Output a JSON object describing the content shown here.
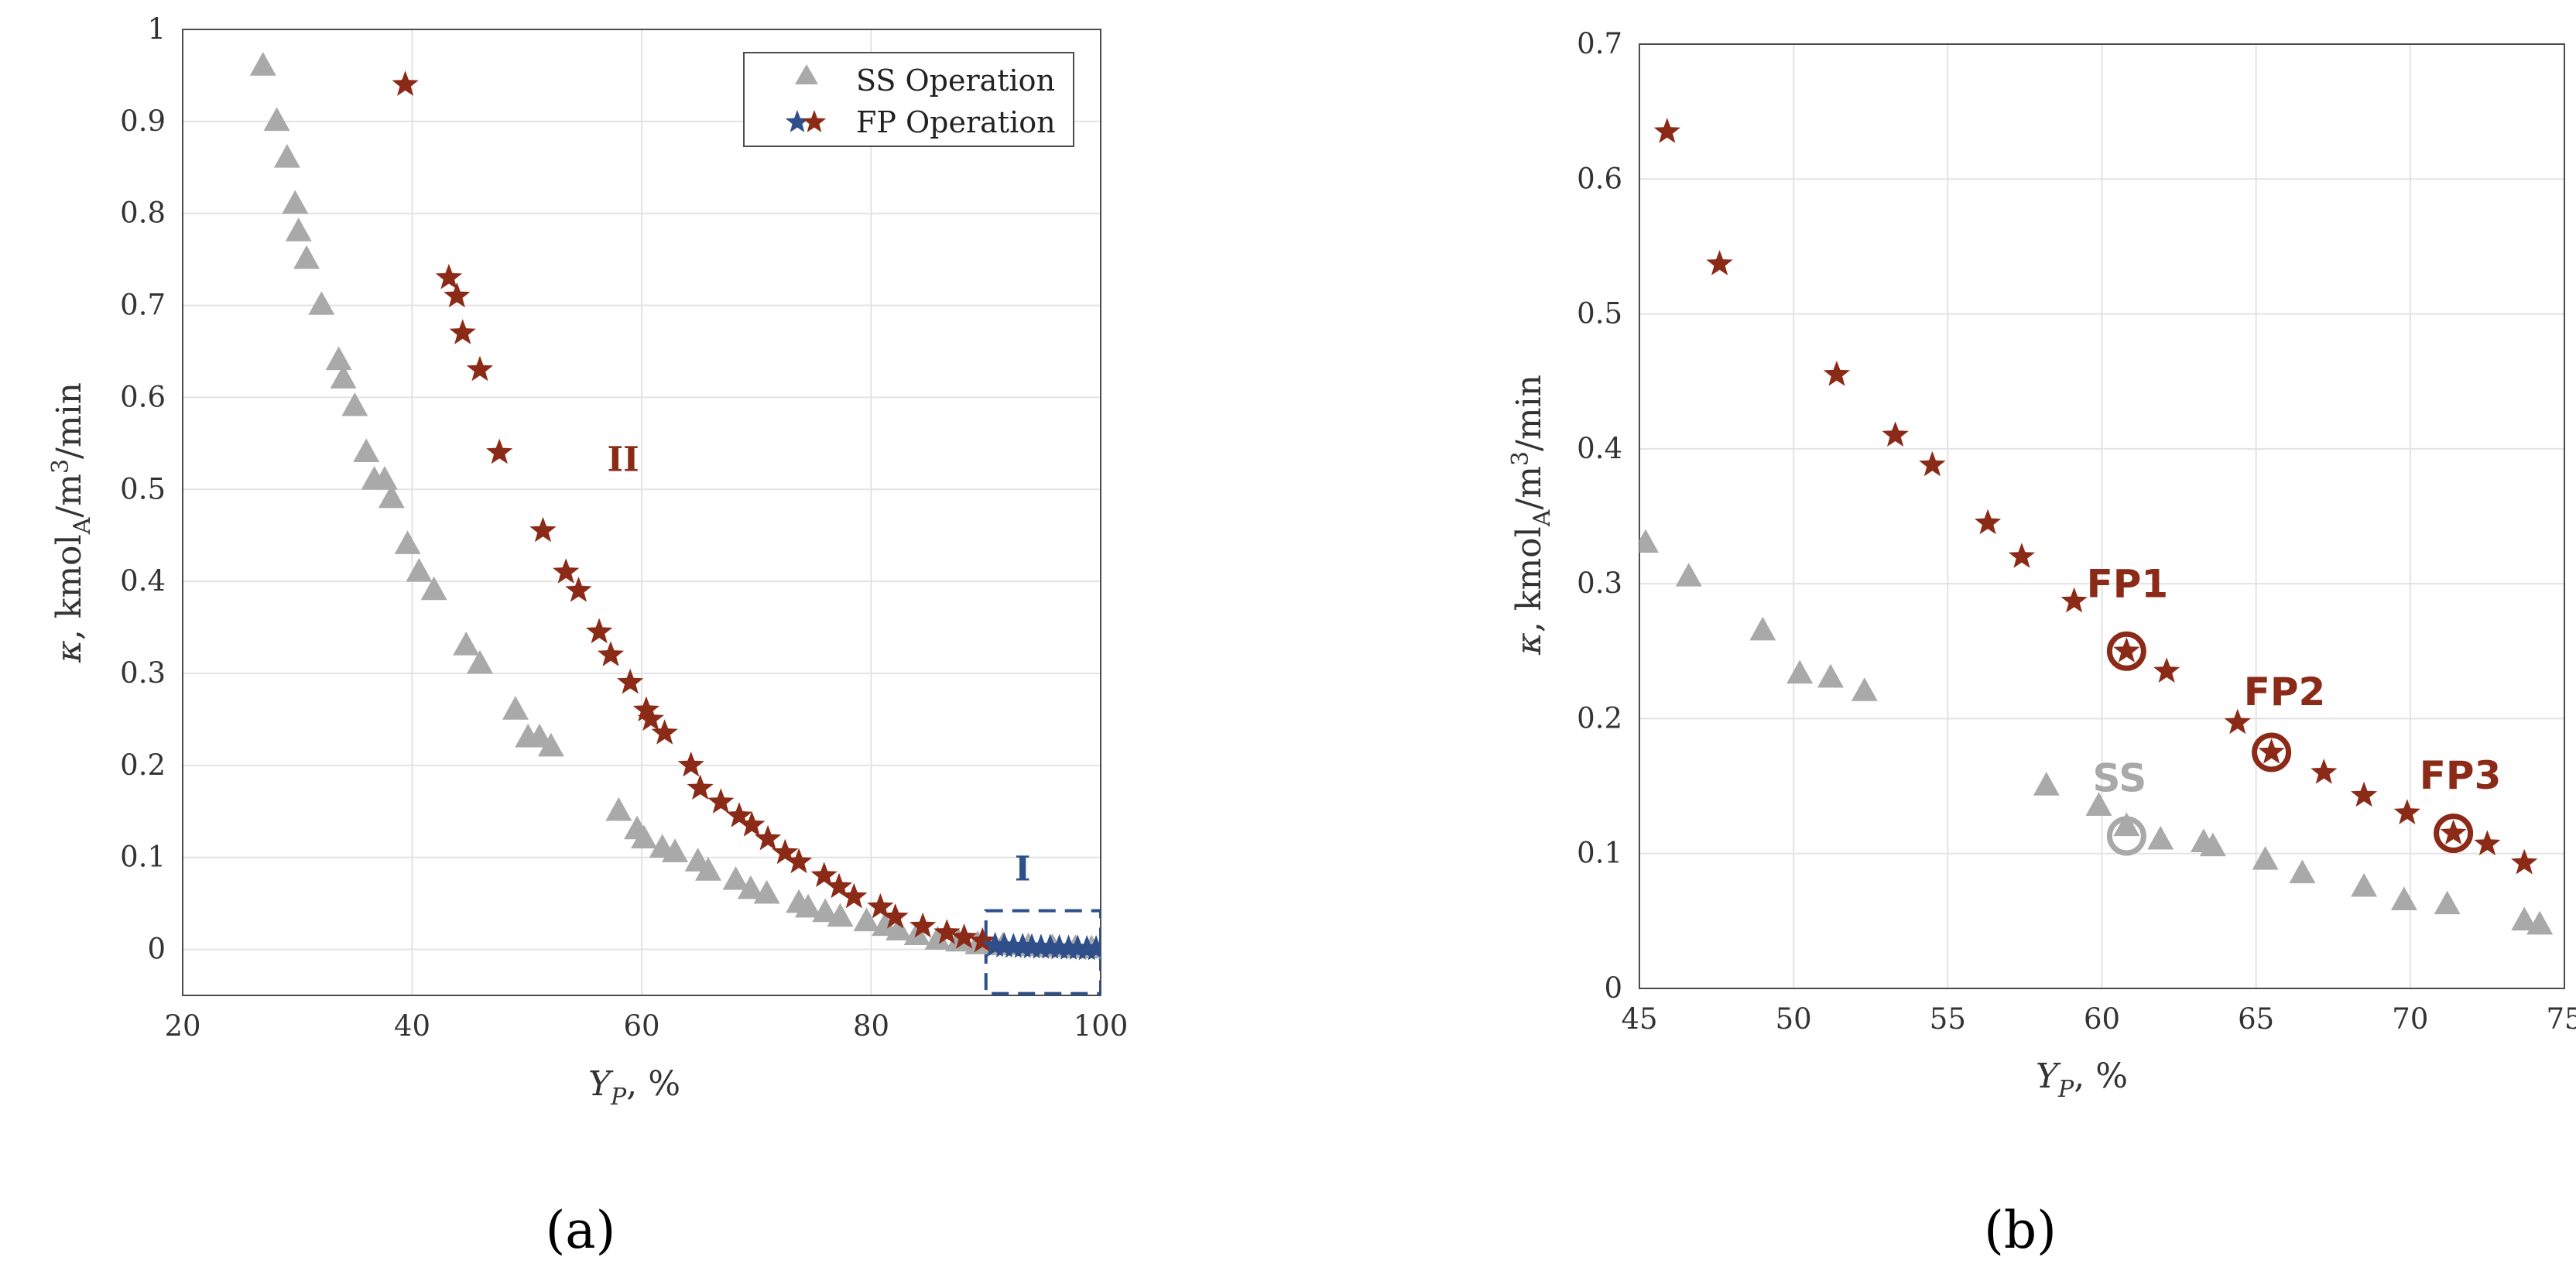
{
  "colors": {
    "ss": "#a9a9a9",
    "fp": "#8b2a16",
    "fp_region1": "#2e4f8a",
    "grid": "#e3e3e3",
    "axis": "#4d4d4d"
  },
  "chart_data": [
    {
      "type": "scatter",
      "panel_label": "(a)",
      "xlabel": "Y_P, %",
      "ylabel": "κ, kmol_A/m^3/min",
      "xlim": [
        20,
        100
      ],
      "ylim": [
        -0.05,
        1
      ],
      "grid": true,
      "xticks": [
        "20",
        "40",
        "60",
        "80",
        "100"
      ],
      "yticks": [
        "0",
        "0.1",
        "0.2",
        "0.3",
        "0.4",
        "0.5",
        "0.6",
        "0.7",
        "0.8",
        "0.9",
        "1"
      ],
      "legend": {
        "position": "top-right",
        "entries": [
          "SS Operation",
          "FP Operation"
        ]
      },
      "annotations": [
        {
          "text": "II",
          "x": 57,
          "y": 0.52
        },
        {
          "text": "I",
          "x": 92.5,
          "y": 0.075
        }
      ],
      "highlight_box": {
        "x": [
          90,
          100
        ],
        "y": [
          -0.048,
          0.042
        ]
      },
      "series": [
        {
          "name": "SS Operation",
          "marker": "triangle",
          "points": [
            [
              27,
              0.96
            ],
            [
              28.2,
              0.9
            ],
            [
              29.1,
              0.86
            ],
            [
              29.8,
              0.81
            ],
            [
              30.1,
              0.78
            ],
            [
              30.8,
              0.75
            ],
            [
              32.1,
              0.7
            ],
            [
              33.6,
              0.64
            ],
            [
              34,
              0.62
            ],
            [
              35,
              0.59
            ],
            [
              36,
              0.54
            ],
            [
              36.7,
              0.51
            ],
            [
              37.6,
              0.51
            ],
            [
              38.2,
              0.49
            ],
            [
              39.6,
              0.44
            ],
            [
              40.6,
              0.41
            ],
            [
              41.9,
              0.39
            ],
            [
              44.7,
              0.33
            ],
            [
              45.9,
              0.31
            ],
            [
              49,
              0.26
            ],
            [
              50.1,
              0.23
            ],
            [
              51.1,
              0.23
            ],
            [
              52.1,
              0.22
            ],
            [
              58,
              0.15
            ],
            [
              59.6,
              0.13
            ],
            [
              60.2,
              0.12
            ],
            [
              61.8,
              0.11
            ],
            [
              62.9,
              0.105
            ],
            [
              64.9,
              0.095
            ],
            [
              65.8,
              0.085
            ],
            [
              68.2,
              0.075
            ],
            [
              69.5,
              0.065
            ],
            [
              70.9,
              0.06
            ],
            [
              73.7,
              0.05
            ],
            [
              74.5,
              0.045
            ],
            [
              76,
              0.04
            ],
            [
              77.3,
              0.035
            ],
            [
              79.6,
              0.03
            ],
            [
              81.2,
              0.025
            ],
            [
              82.4,
              0.02
            ],
            [
              84,
              0.015
            ],
            [
              85.8,
              0.01
            ],
            [
              87.6,
              0.008
            ],
            [
              89.3,
              0.005
            ],
            [
              91.5,
              0.004
            ],
            [
              93.7,
              0.003
            ],
            [
              95.8,
              0.002
            ],
            [
              97.8,
              0.001
            ],
            [
              99.2,
              0.0005
            ]
          ]
        },
        {
          "name": "FP Operation",
          "marker": "star",
          "points": [
            [
              39.4,
              0.94
            ],
            [
              43.2,
              0.73
            ],
            [
              43.9,
              0.71
            ],
            [
              44.4,
              0.67
            ],
            [
              45.9,
              0.63
            ],
            [
              47.6,
              0.54
            ],
            [
              51.4,
              0.455
            ],
            [
              53.4,
              0.41
            ],
            [
              54.5,
              0.39
            ],
            [
              56.3,
              0.345
            ],
            [
              57.3,
              0.32
            ],
            [
              59,
              0.29
            ],
            [
              60.4,
              0.26
            ],
            [
              60.8,
              0.25
            ],
            [
              62,
              0.235
            ],
            [
              64.3,
              0.2
            ],
            [
              65.1,
              0.175
            ],
            [
              66.9,
              0.16
            ],
            [
              68.5,
              0.145
            ],
            [
              69.6,
              0.135
            ],
            [
              71,
              0.12
            ],
            [
              72.5,
              0.105
            ],
            [
              73.7,
              0.095
            ],
            [
              75.9,
              0.08
            ],
            [
              77.2,
              0.068
            ],
            [
              78.5,
              0.057
            ],
            [
              80.8,
              0.046
            ],
            [
              82.1,
              0.035
            ],
            [
              84.5,
              0.025
            ],
            [
              86.6,
              0.018
            ],
            [
              88.1,
              0.013
            ],
            [
              89.7,
              0.009
            ]
          ]
        },
        {
          "name": "FP Operation (region I)",
          "marker": "star",
          "points": [
            [
              90.8,
              0.004
            ],
            [
              91.6,
              0.0035
            ],
            [
              92.4,
              0.003
            ],
            [
              93.2,
              0.003
            ],
            [
              94,
              0.0025
            ],
            [
              94.8,
              0.002
            ],
            [
              95.6,
              0.002
            ],
            [
              96.4,
              0.0015
            ],
            [
              97.2,
              0.001
            ],
            [
              98,
              0.001
            ],
            [
              98.8,
              0.0005
            ],
            [
              99.6,
              0.0005
            ]
          ]
        }
      ]
    },
    {
      "type": "scatter",
      "panel_label": "(b)",
      "xlabel": "Y_P, %",
      "ylabel": "κ, kmol_A/m^3/min",
      "xlim": [
        45,
        75
      ],
      "ylim": [
        0,
        0.7
      ],
      "grid": true,
      "xticks": [
        "45",
        "50",
        "55",
        "60",
        "65",
        "70",
        "75"
      ],
      "yticks": [
        "0",
        "0.1",
        "0.2",
        "0.3",
        "0.4",
        "0.5",
        "0.6",
        "0.7"
      ],
      "highlighted_points": [
        {
          "label": "FP1",
          "x": 60.8,
          "y": 0.25,
          "series": "FP",
          "label_pos": [
            59.5,
            0.29
          ]
        },
        {
          "label": "FP2",
          "x": 65.5,
          "y": 0.175,
          "series": "FP",
          "label_pos": [
            64.6,
            0.21
          ]
        },
        {
          "label": "FP3",
          "x": 71.4,
          "y": 0.115,
          "series": "FP",
          "label_pos": [
            70.3,
            0.148
          ]
        },
        {
          "label": "SS",
          "x": 60.8,
          "y": 0.113,
          "series": "SS",
          "label_pos": [
            59.7,
            0.146
          ]
        }
      ],
      "series": [
        {
          "name": "SS Operation",
          "marker": "triangle",
          "points": [
            [
              45.2,
              0.33
            ],
            [
              46.6,
              0.305
            ],
            [
              49,
              0.265
            ],
            [
              50.2,
              0.233
            ],
            [
              51.2,
              0.23
            ],
            [
              52.3,
              0.22
            ],
            [
              58.2,
              0.15
            ],
            [
              59.9,
              0.135
            ],
            [
              60.8,
              0.12
            ],
            [
              61.9,
              0.11
            ],
            [
              63.3,
              0.108
            ],
            [
              63.6,
              0.105
            ],
            [
              65.3,
              0.095
            ],
            [
              66.5,
              0.085
            ],
            [
              68.5,
              0.075
            ],
            [
              69.8,
              0.065
            ],
            [
              71.2,
              0.062
            ],
            [
              73.7,
              0.05
            ],
            [
              74.2,
              0.047
            ]
          ]
        },
        {
          "name": "FP Operation",
          "marker": "star",
          "points": [
            [
              45.9,
              0.635
            ],
            [
              47.6,
              0.537
            ],
            [
              51.4,
              0.455
            ],
            [
              53.3,
              0.41
            ],
            [
              54.5,
              0.388
            ],
            [
              56.3,
              0.345
            ],
            [
              57.4,
              0.32
            ],
            [
              59.1,
              0.287
            ],
            [
              60.8,
              0.25
            ],
            [
              62.1,
              0.235
            ],
            [
              64.4,
              0.197
            ],
            [
              65.5,
              0.175
            ],
            [
              67.2,
              0.16
            ],
            [
              68.5,
              0.143
            ],
            [
              69.9,
              0.13
            ],
            [
              71.4,
              0.115
            ],
            [
              72.5,
              0.107
            ],
            [
              73.7,
              0.093
            ]
          ]
        }
      ]
    }
  ]
}
